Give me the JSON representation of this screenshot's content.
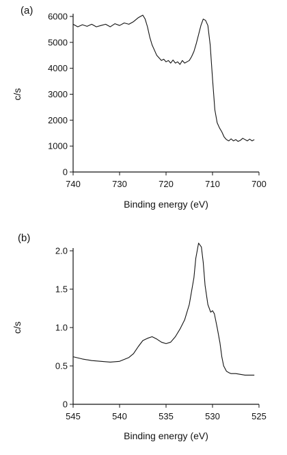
{
  "chart_data": [
    {
      "type": "line",
      "panel_label": "(a)",
      "xlabel": "Binding energy (eV)",
      "ylabel": "c/s",
      "xlim": [
        740,
        700
      ],
      "ylim": [
        0,
        6000
      ],
      "x_reversed": true,
      "xticks": [
        740,
        730,
        720,
        710,
        700
      ],
      "yticks": [
        0,
        1000,
        2000,
        3000,
        4000,
        5000,
        6000
      ],
      "grid": false,
      "series": [
        {
          "x": [
            740,
            739,
            738,
            737,
            736,
            735,
            734,
            733,
            732,
            731,
            730,
            729,
            728,
            727,
            726,
            725.5,
            725,
            724.5,
            724,
            723.5,
            723,
            722.5,
            722,
            721.5,
            721,
            720.5,
            720,
            719.5,
            719,
            718.5,
            718,
            717.5,
            717,
            716.5,
            716,
            715.5,
            715,
            714.5,
            714,
            713.5,
            713,
            712.5,
            712,
            711.5,
            711,
            710.5,
            710,
            709.5,
            709,
            708.5,
            708,
            707.5,
            707,
            706.5,
            706,
            705.5,
            705,
            704.5,
            704,
            703.5,
            703,
            702.5,
            702,
            701.5,
            701
          ],
          "y": [
            5700,
            5600,
            5680,
            5620,
            5700,
            5600,
            5650,
            5700,
            5600,
            5720,
            5650,
            5750,
            5700,
            5800,
            5950,
            6000,
            6050,
            5900,
            5600,
            5200,
            4900,
            4700,
            4500,
            4400,
            4300,
            4350,
            4250,
            4300,
            4200,
            4320,
            4200,
            4250,
            4150,
            4300,
            4200,
            4250,
            4300,
            4450,
            4650,
            4950,
            5300,
            5650,
            5900,
            5850,
            5650,
            4900,
            3600,
            2400,
            1900,
            1700,
            1550,
            1350,
            1250,
            1200,
            1280,
            1200,
            1250,
            1180,
            1220,
            1300,
            1250,
            1200,
            1270,
            1200,
            1250
          ]
        }
      ]
    },
    {
      "type": "line",
      "panel_label": "(b)",
      "xlabel": "Binding energy (eV)",
      "ylabel": "c/s",
      "xlim": [
        545,
        525
      ],
      "ylim": [
        0,
        2.0
      ],
      "x_reversed": true,
      "xticks": [
        545,
        540,
        535,
        530,
        525
      ],
      "yticks": [
        0,
        0.5,
        1.0,
        1.5,
        2.0
      ],
      "ytick_labels": [
        "0",
        "0.5",
        "1.0",
        "1.5",
        "2.0"
      ],
      "grid": false,
      "series": [
        {
          "x": [
            545,
            544,
            543,
            542,
            541,
            540,
            539,
            538.5,
            538,
            537.5,
            537,
            536.5,
            536,
            535.5,
            535,
            534.5,
            534,
            533.5,
            533,
            532.5,
            532,
            531.8,
            531.5,
            531.2,
            531,
            530.8,
            530.5,
            530.2,
            530,
            529.8,
            529.5,
            529.2,
            529,
            528.8,
            528.5,
            528.2,
            528,
            527.5,
            527,
            526.5,
            526,
            525.5
          ],
          "y": [
            0.62,
            0.59,
            0.57,
            0.56,
            0.55,
            0.56,
            0.61,
            0.66,
            0.75,
            0.83,
            0.86,
            0.88,
            0.85,
            0.81,
            0.79,
            0.81,
            0.88,
            0.98,
            1.1,
            1.3,
            1.65,
            1.9,
            2.1,
            2.05,
            1.85,
            1.55,
            1.3,
            1.2,
            1.22,
            1.18,
            1.0,
            0.8,
            0.62,
            0.5,
            0.43,
            0.41,
            0.4,
            0.4,
            0.39,
            0.38,
            0.38,
            0.38
          ]
        }
      ]
    }
  ]
}
